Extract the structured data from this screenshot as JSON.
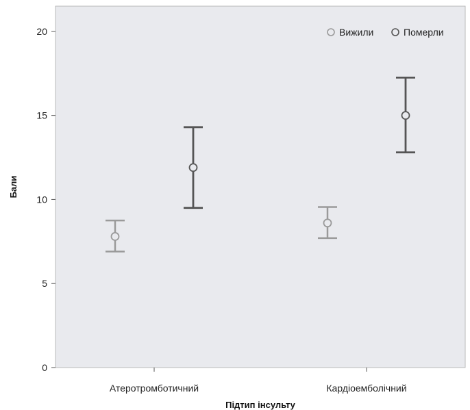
{
  "chart_data": {
    "type": "errorbar",
    "ylabel": "Бали",
    "xlabel": "Підтип інсульту",
    "ylim": [
      0,
      21.5
    ],
    "yticks": [
      0,
      5,
      10,
      15,
      20
    ],
    "categories": [
      "Атеротромботичний",
      "Кардіоемболічний"
    ],
    "legend_position": "top-right",
    "grid": false,
    "series": [
      {
        "name": "Вижили",
        "color": "#9a9a9a",
        "values": [
          7.8,
          8.6
        ],
        "lower": [
          6.9,
          7.7
        ],
        "upper": [
          8.75,
          9.55
        ]
      },
      {
        "name": "Померли",
        "color": "#555555",
        "values": [
          11.9,
          15.0
        ],
        "lower": [
          9.5,
          12.8
        ],
        "upper": [
          14.3,
          17.25
        ]
      }
    ]
  }
}
